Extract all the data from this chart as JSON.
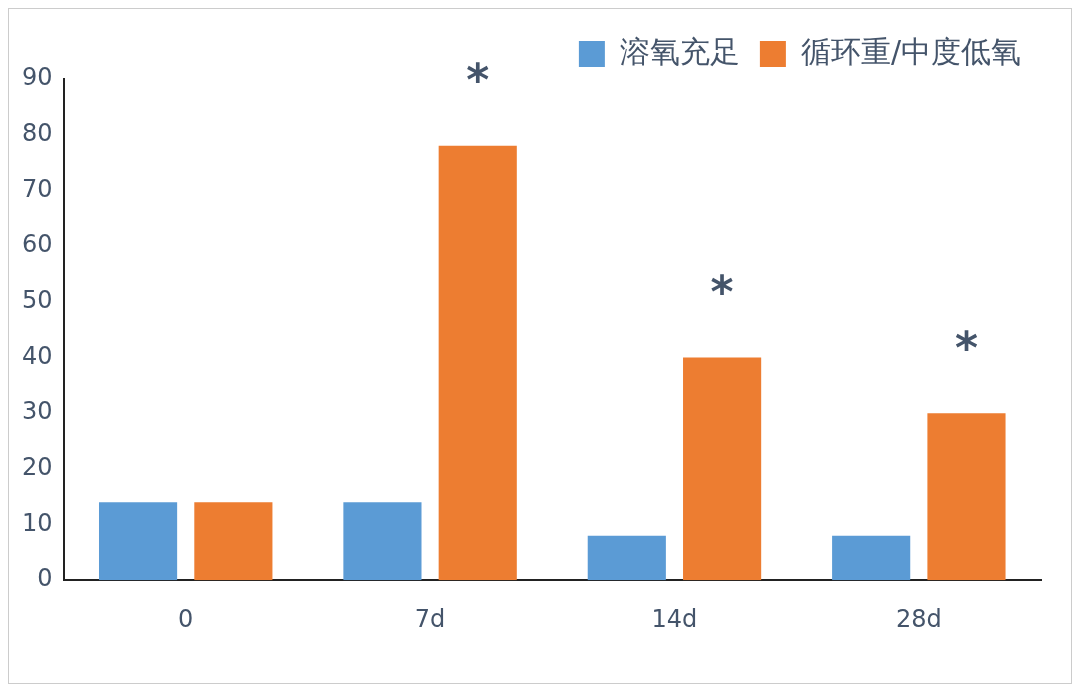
{
  "chart_data": {
    "type": "bar",
    "categories": [
      "0",
      "7d",
      "14d",
      "28d"
    ],
    "series": [
      {
        "name": "溶氧充足",
        "color": "#5b9bd5",
        "values": [
          14,
          14,
          8,
          8
        ]
      },
      {
        "name": "循环重/中度低氧",
        "color": "#ed7d31",
        "values": [
          14,
          78,
          40,
          30
        ]
      }
    ],
    "ylim": [
      0,
      90
    ],
    "yticks": [
      0,
      10,
      20,
      30,
      40,
      50,
      60,
      70,
      80,
      90
    ],
    "legend": "top right",
    "annotations": [
      "*",
      "*",
      "*"
    ]
  }
}
